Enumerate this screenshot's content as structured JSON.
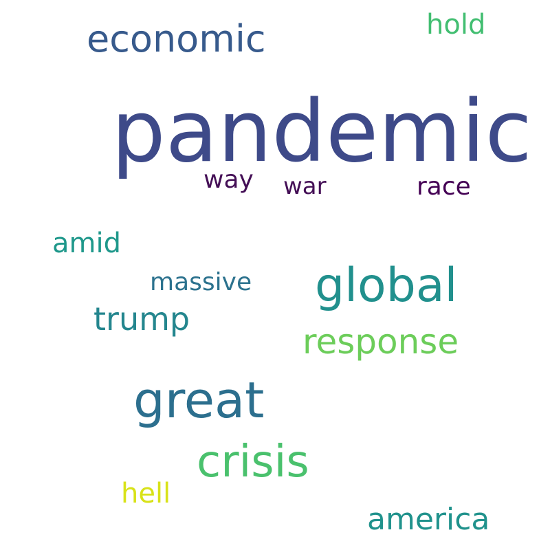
{
  "wordcloud": {
    "words": [
      {
        "id": "pandemic",
        "text": "pandemic",
        "color": "#3e4a89"
      },
      {
        "id": "economic",
        "text": "economic",
        "color": "#375a8c"
      },
      {
        "id": "hold",
        "text": "hold",
        "color": "#42be71"
      },
      {
        "id": "way",
        "text": "way",
        "color": "#440f56"
      },
      {
        "id": "war",
        "text": "war",
        "color": "#440f56"
      },
      {
        "id": "race",
        "text": "race",
        "color": "#440154"
      },
      {
        "id": "amid",
        "text": "amid",
        "color": "#1f988b"
      },
      {
        "id": "massive",
        "text": "massive",
        "color": "#2c728e"
      },
      {
        "id": "global",
        "text": "global",
        "color": "#21908d"
      },
      {
        "id": "trump",
        "text": "trump",
        "color": "#24868e"
      },
      {
        "id": "response",
        "text": "response",
        "color": "#6ccd5a"
      },
      {
        "id": "great",
        "text": "great",
        "color": "#2c6f8e"
      },
      {
        "id": "crisis",
        "text": "crisis",
        "color": "#4ac16d"
      },
      {
        "id": "hell",
        "text": "hell",
        "color": "#d8e219"
      },
      {
        "id": "america",
        "text": "america",
        "color": "#20928c"
      }
    ]
  }
}
